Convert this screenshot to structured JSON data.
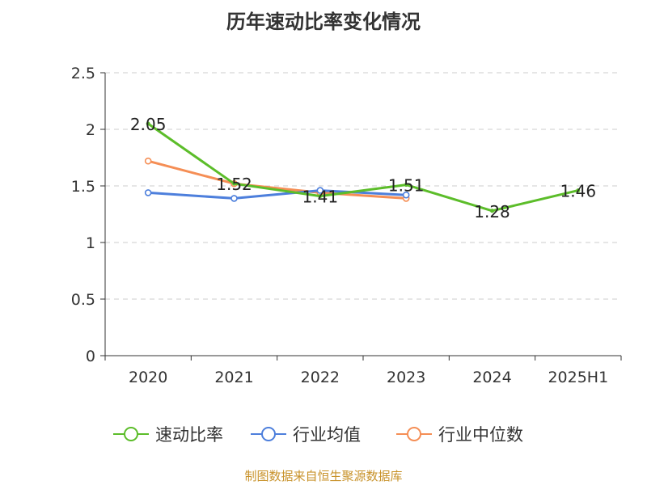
{
  "chart_data": {
    "type": "line",
    "title": "历年速动比率变化情况",
    "categories": [
      "2020",
      "2021",
      "2022",
      "2023",
      "2024",
      "2025H1"
    ],
    "ylim": [
      0,
      2.5
    ],
    "yticks": [
      "0",
      "0.5",
      "1",
      "1.5",
      "2",
      "2.5"
    ],
    "grid": true,
    "legend_position": "bottom",
    "series": [
      {
        "name": "速动比率",
        "color": "#5cbd2a",
        "values": [
          2.05,
          1.52,
          1.41,
          1.51,
          1.28,
          1.46
        ],
        "labels": [
          "2.05",
          "1.52",
          "1.41",
          "1.51",
          "1.28",
          "1.46"
        ]
      },
      {
        "name": "行业均值",
        "color": "#4d7fdc",
        "values": [
          1.44,
          1.39,
          1.46,
          1.42,
          null,
          null
        ]
      },
      {
        "name": "行业中位数",
        "color": "#f58e55",
        "values": [
          1.72,
          1.52,
          1.44,
          1.39,
          null,
          null
        ]
      }
    ]
  },
  "footer": {
    "source": "制图数据来自恒生聚源数据库"
  }
}
